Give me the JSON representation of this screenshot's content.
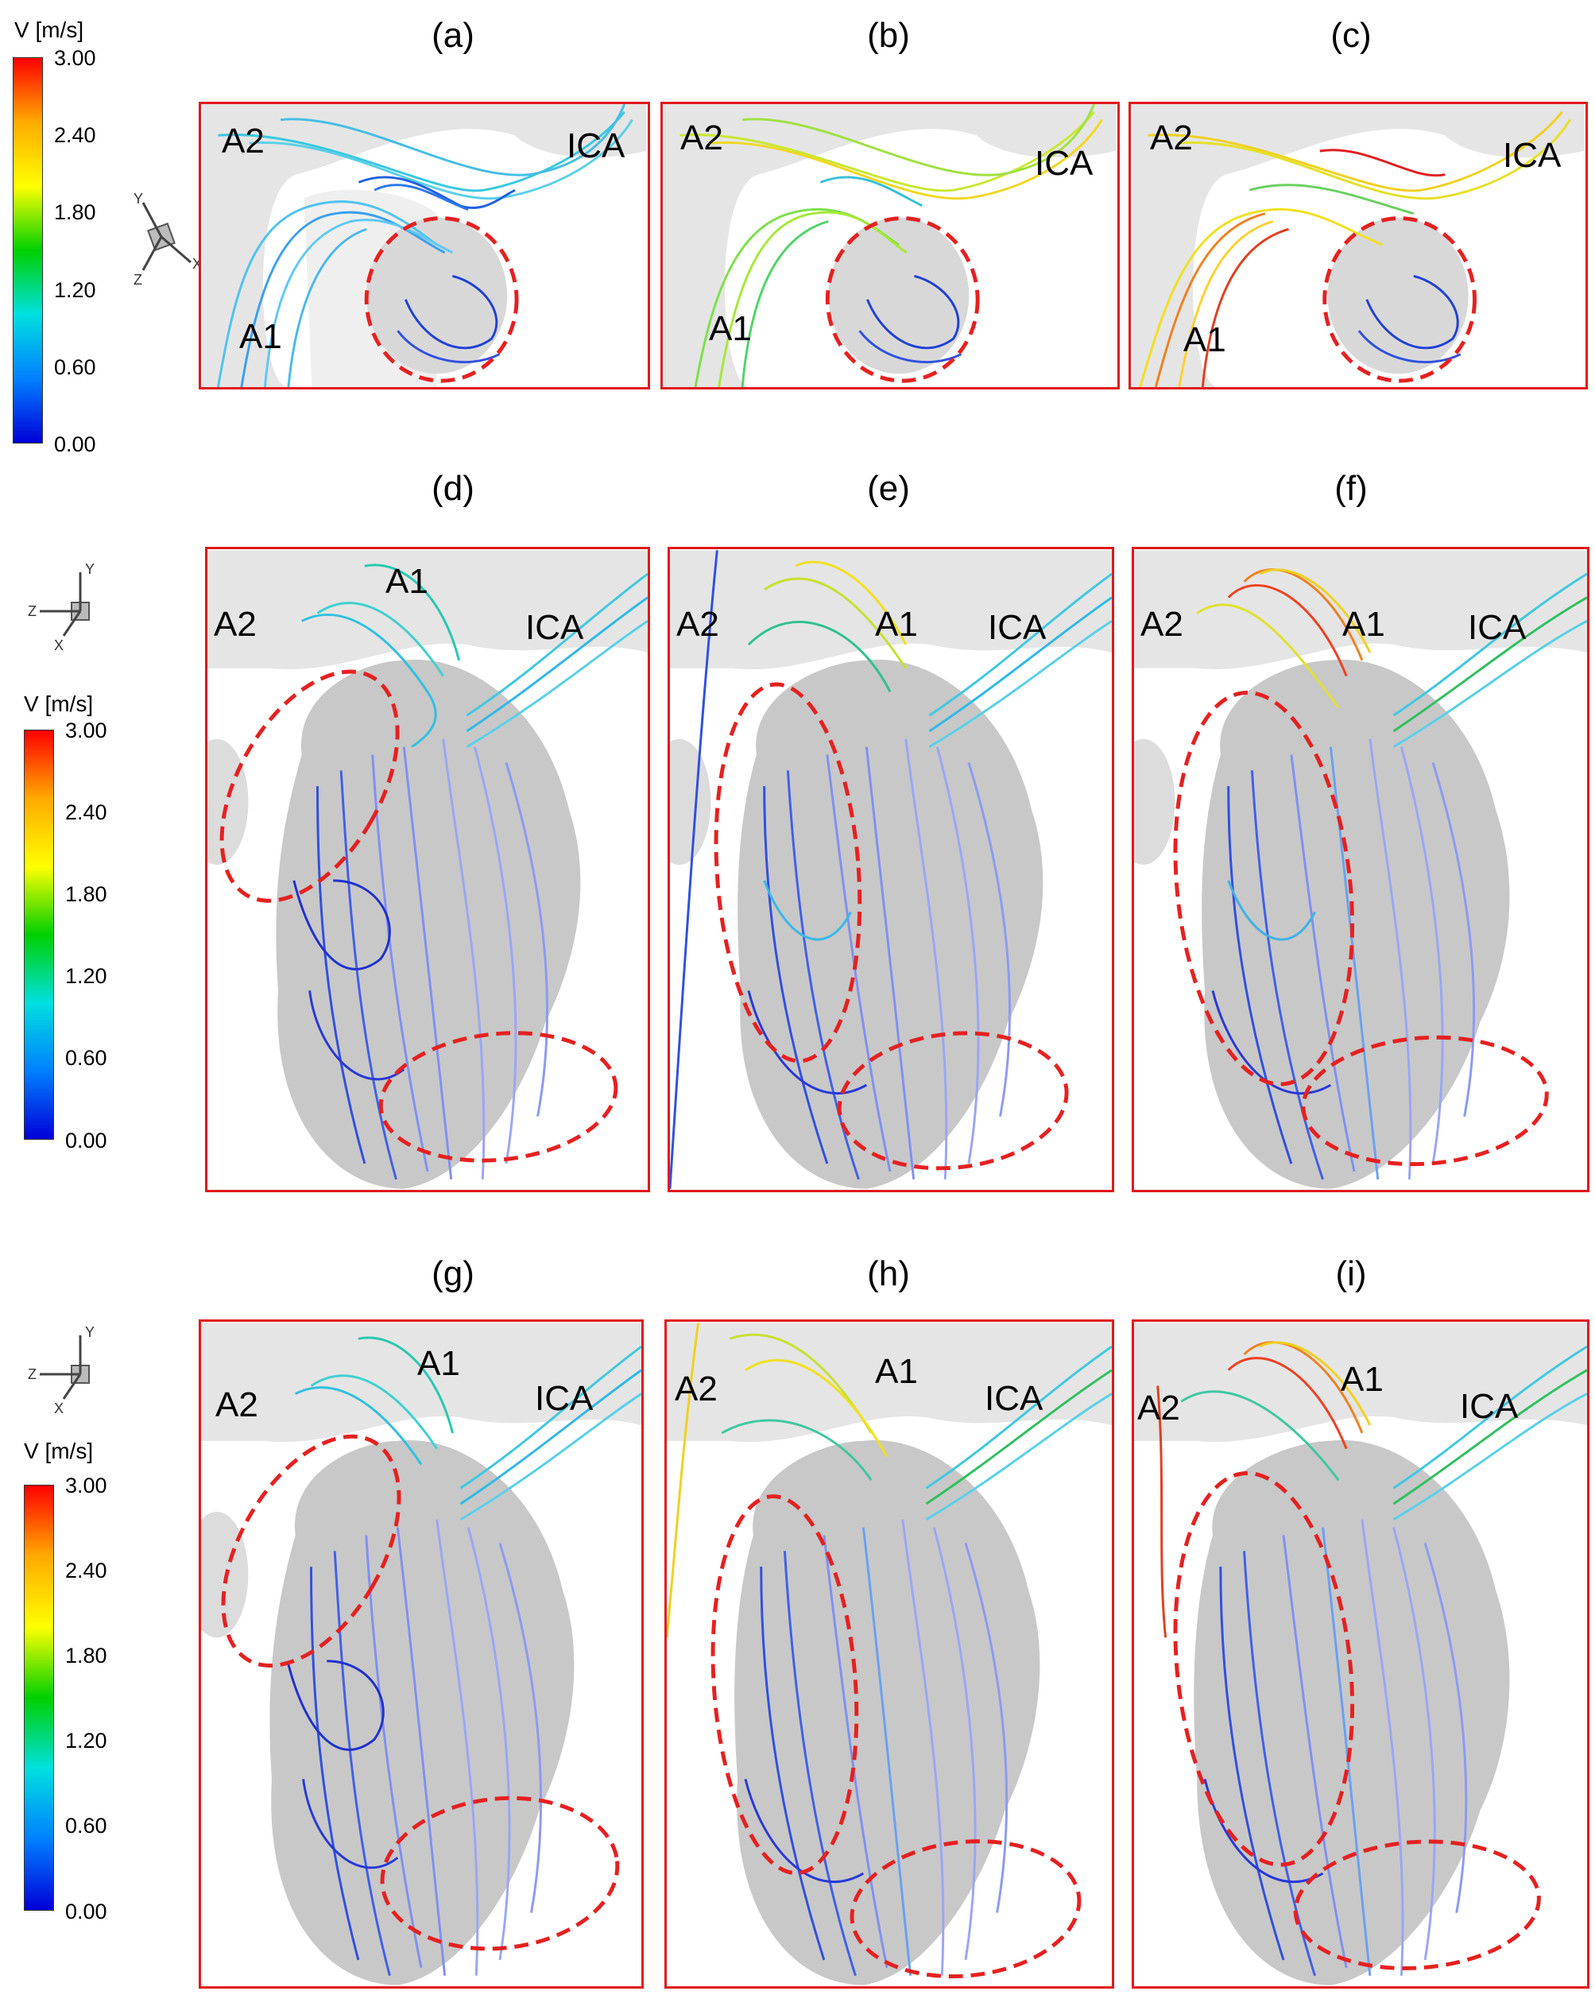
{
  "colors": {
    "frame": "#e0191b",
    "highlight": "#e62020"
  },
  "panel_labels": [
    "(a)",
    "(b)",
    "(c)",
    "(d)",
    "(e)",
    "(f)",
    "(g)",
    "(h)",
    "(i)"
  ],
  "vessels": {
    "a2": "A2",
    "a1": "A1",
    "ica": "ICA"
  },
  "colorbar": {
    "title": "V [m/s]",
    "ticks": [
      "3.00",
      "2.40",
      "1.80",
      "1.20",
      "0.60",
      "0.00"
    ],
    "stops": [
      "#ff0000",
      "#ffaa00",
      "#ffff00",
      "#00d000",
      "#00e0e0",
      "#0080ff",
      "#0000d8"
    ]
  },
  "axes_triad": {
    "x": "X",
    "y": "Y",
    "z": "Z"
  }
}
